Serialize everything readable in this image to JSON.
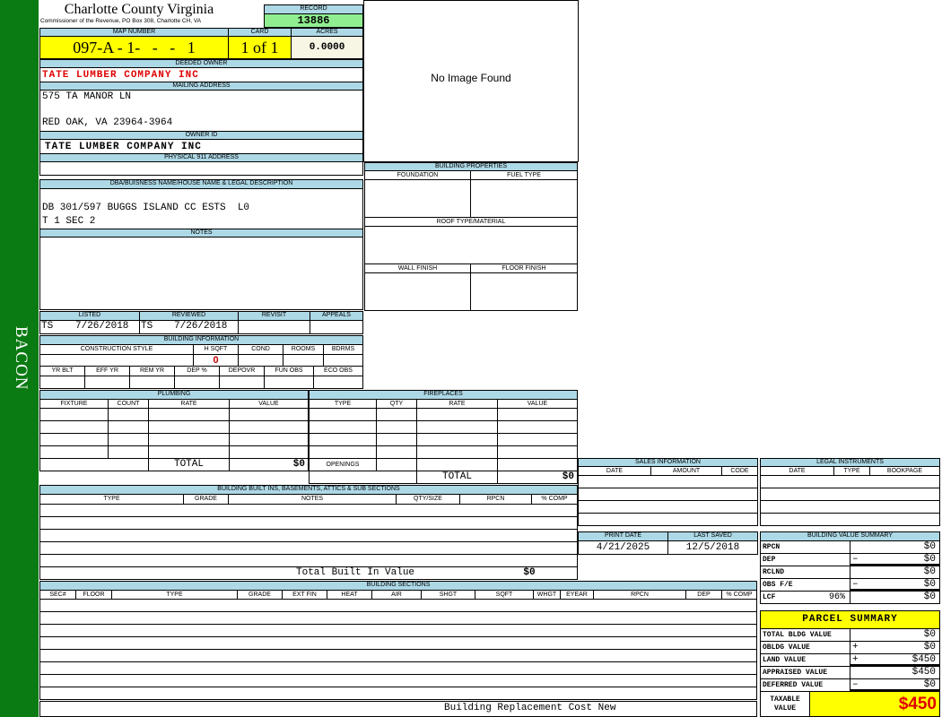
{
  "sidebar": {
    "district": "BACON"
  },
  "header": {
    "county_title": "Charlotte County Virginia",
    "subtitle": "Commissioner of the Revenue, PO Box 308, Charlotte CH, VA",
    "record_label": "RECORD",
    "record": "13886"
  },
  "image": {
    "placeholder": "No Image Found"
  },
  "parcel": {
    "map_number_label": "MAP NUMBER",
    "map_number": "097-A - 1-   -   -   1",
    "card_label": "CARD",
    "card": "1 of 1",
    "acres_label": "ACRES",
    "acres": "0.0000"
  },
  "owner": {
    "deeded_owner_label": "DEEDED OWNER",
    "deeded_owner": "TATE LUMBER COMPANY INC",
    "mailing_address_label": "MAILING ADDRESS",
    "mailing_line1": "575 TA MANOR LN",
    "mailing_line2": "RED OAK, VA 23964-3964",
    "owner_id_label": "OWNER ID",
    "owner_id": "TATE LUMBER COMPANY INC",
    "physical_address_label": "PHYSICAL 911 ADDRESS"
  },
  "legal": {
    "label": "DBA/BUISNESS NAME/HOUSE NAME & LEGAL DESCRIPTION",
    "line1": "DB 301/597 BUGGS ISLAND CC ESTS  L0",
    "line2": "T 1 SEC 2",
    "notes_label": "NOTES"
  },
  "dates": {
    "listed_label": "LISTED",
    "listed_by": "TS",
    "listed": "7/26/2018",
    "reviewed_label": "REVIEWED",
    "reviewed_by": "TS",
    "reviewed": "7/26/2018",
    "revisit_label": "REVISIT",
    "appeals_label": "APPEALS"
  },
  "building_info": {
    "label": "BUILDING INFORMATION",
    "row1": [
      "CONSTRUCTION STYLE",
      "H SQFT",
      "COND",
      "ROOMS",
      "BDRMS"
    ],
    "hsqft": "0",
    "row2": [
      "YR BLT",
      "EFF YR",
      "REM YR",
      "DEP %",
      "DEPOVR",
      "FUN OBS",
      "ECO OBS"
    ]
  },
  "building_properties": {
    "label": "BUILDING PROPERTIES",
    "foundation": "FOUNDATION",
    "fuel_type": "FUEL TYPE",
    "roof": "ROOF TYPE/MATERIAL",
    "wall_finish": "WALL FINISH",
    "floor_finish": "FLOOR FINISH"
  },
  "plumbing": {
    "label": "PLUMBING",
    "columns": [
      "FIXTURE",
      "COUNT",
      "RATE",
      "VALUE"
    ],
    "total_label": "TOTAL",
    "total": "$0"
  },
  "fireplaces": {
    "label": "FIREPLACES",
    "columns": [
      "TYPE",
      "QTY",
      "RATE",
      "VALUE"
    ],
    "openings_label": "OPENINGS",
    "total_label": "TOTAL",
    "total": "$0"
  },
  "built_ins": {
    "label": "BUILDING BUILT INS, BASEMENTS, ATTICS & SUB SECTIONS",
    "columns": [
      "TYPE",
      "GRADE",
      "NOTES",
      "QTY/SIZE",
      "RPCN",
      "% COMP"
    ],
    "total_label": "Total Built In Value",
    "total": "$0"
  },
  "sections": {
    "label": "BUILDING SECTIONS",
    "columns": [
      "SEC#",
      "FLOOR",
      "TYPE",
      "GRADE",
      "EXT FIN",
      "HEAT",
      "AIR",
      "SHGT",
      "SQFT",
      "WHGT",
      "EYEAR",
      "RPCN",
      "DEP",
      "% COMP"
    ],
    "footer_label": "Building Replacement Cost New"
  },
  "sales": {
    "label": "SALES INFORMATION",
    "columns": [
      "DATE",
      "AMOUNT",
      "CODE"
    ]
  },
  "legal_instruments": {
    "label": "LEGAL INSTRUMENTS",
    "columns": [
      "DATE",
      "TYPE",
      "BOOKPAGE"
    ]
  },
  "print": {
    "print_date_label": "PRINT DATE",
    "print_date": "4/21/2025",
    "last_saved_label": "LAST SAVED",
    "last_saved": "12/5/2018"
  },
  "value_summary": {
    "label": "BUILDING VALUE SUMMARY",
    "rows": [
      {
        "label": "RPCN",
        "sign": "",
        "value": "$0"
      },
      {
        "label": "DEP",
        "sign": "–",
        "value": "$0"
      },
      {
        "label": "RCLND",
        "sign": "",
        "value": "$0"
      },
      {
        "label": "OBS F/E",
        "sign": "–",
        "value": "$0"
      },
      {
        "label": "LCF",
        "extra": "96%",
        "sign": "",
        "value": "$0"
      }
    ]
  },
  "parcel_summary": {
    "title": "PARCEL SUMMARY",
    "rows": [
      {
        "label": "TOTAL BLDG VALUE",
        "sign": "",
        "value": "$0"
      },
      {
        "label": "OBLDG VALUE",
        "sign": "+",
        "value": "$0"
      },
      {
        "label": "LAND VALUE",
        "sign": "+",
        "value": "$450"
      },
      {
        "label": "APPRAISED VALUE",
        "sign": "",
        "value": "$450"
      },
      {
        "label": "DEFERRED VALUE",
        "sign": "–",
        "value": "$0"
      }
    ],
    "taxable_label": "TAXABLE VALUE",
    "taxable_value": "$450"
  },
  "colors": {
    "header": "#add8e6",
    "highlight": "#ffff00",
    "record": "#90ee90",
    "sidebar": "#0a7a12",
    "owner_text": "#e00000"
  }
}
